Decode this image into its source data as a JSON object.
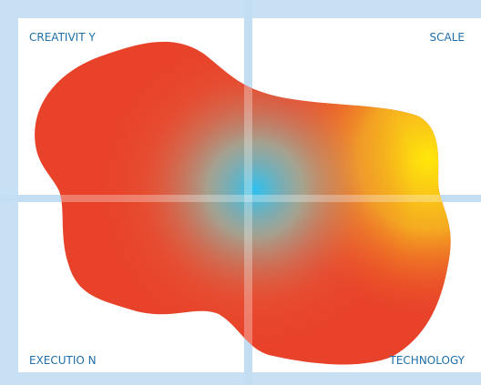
{
  "quadrants": {
    "top_left": "CREATIVIT Y",
    "top_right": "SCALE",
    "bottom_left": "EXECUTIO N",
    "bottom_right": "TECHNOLOGY"
  }
}
